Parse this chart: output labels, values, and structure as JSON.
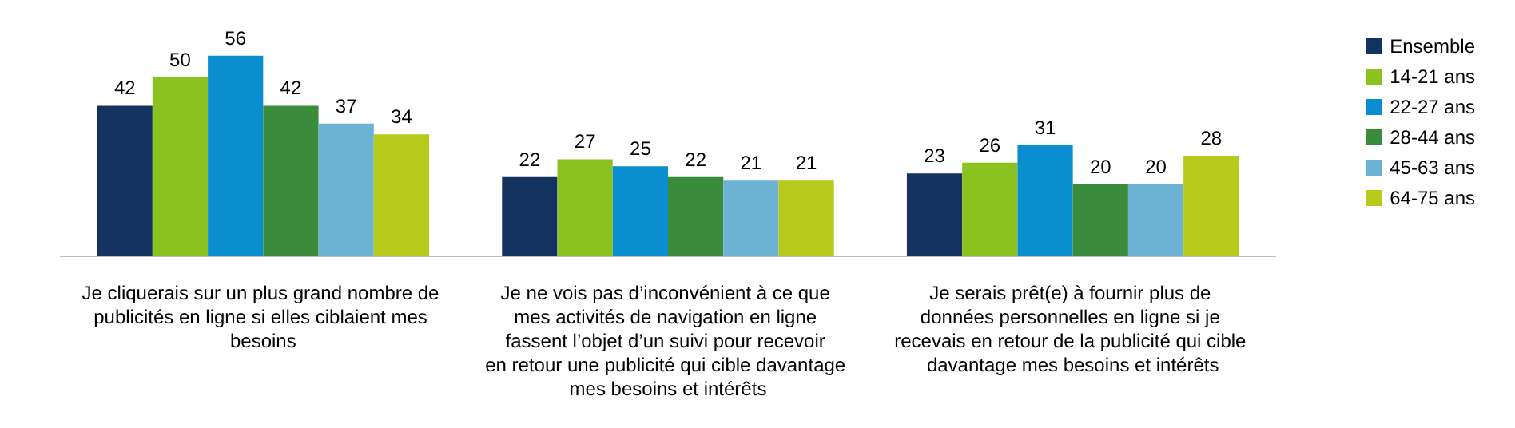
{
  "chart_data": {
    "type": "bar",
    "categories": [
      "Je cliquerais sur un plus grand nombre de publicités en ligne si elles ciblaient mes besoins",
      "Je ne vois pas d’inconvénient à ce que mes activités de navigation en ligne fassent l’objet d’un suivi pour recevoir en retour une publicité qui cible davantage mes besoins et intérêts",
      "Je serais prêt(e) à fournir plus de données personnelles en ligne si je recevais en retour de la publicité qui cible davantage mes besoins et intérêts"
    ],
    "series": [
      {
        "name": "Ensemble",
        "color": "#14325f",
        "values": [
          42,
          22,
          23
        ]
      },
      {
        "name": "14-21 ans",
        "color": "#8cc21f",
        "values": [
          50,
          27,
          26
        ]
      },
      {
        "name": "22-27 ans",
        "color": "#0a8ed0",
        "values": [
          56,
          25,
          31
        ]
      },
      {
        "name": "28-44 ans",
        "color": "#3a8b3b",
        "values": [
          42,
          22,
          20
        ]
      },
      {
        "name": "45-63 ans",
        "color": "#6cb2d3",
        "values": [
          37,
          21,
          20
        ]
      },
      {
        "name": "64-75 ans",
        "color": "#b7c91b",
        "values": [
          34,
          21,
          28
        ]
      }
    ],
    "data_labels": true,
    "legend": "right"
  }
}
